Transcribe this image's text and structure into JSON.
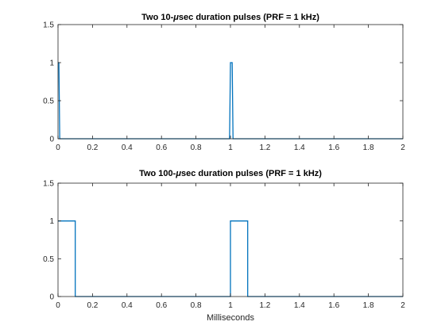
{
  "figure": {
    "background": "#ffffff",
    "axis_color": "#262626",
    "line_color": "#0072bd"
  },
  "chart_data": [
    {
      "type": "line",
      "title_parts": [
        "Two 10-",
        "μ",
        "sec duration pulses (PRF = 1 kHz)"
      ],
      "xlabel": "",
      "ylabel": "",
      "xlim": [
        0,
        2
      ],
      "ylim": [
        0,
        1.5
      ],
      "x_ticks": [
        0,
        0.2,
        0.4,
        0.6,
        0.8,
        1,
        1.2,
        1.4,
        1.6,
        1.8,
        2
      ],
      "x_tick_labels": [
        "0",
        "0.2",
        "0.4",
        "0.6",
        "0.8",
        "1",
        "1.2",
        "1.4",
        "1.6",
        "1.8",
        "2"
      ],
      "y_ticks": [
        0,
        0.5,
        1,
        1.5
      ],
      "y_tick_labels": [
        "0",
        "0.5",
        "1",
        "1.5"
      ],
      "grid": false,
      "series": [
        {
          "x": [
            0,
            0.005,
            0.01,
            0.015,
            0.995,
            1,
            1.005,
            1.01,
            1.015,
            2
          ],
          "y": [
            1,
            1,
            0,
            0,
            0,
            1,
            1,
            1,
            0,
            0
          ]
        }
      ]
    },
    {
      "type": "line",
      "title_parts": [
        "Two 100-",
        "μ",
        "sec duration pulses (PRF = 1 kHz)"
      ],
      "xlabel": "Milliseconds",
      "ylabel": "",
      "xlim": [
        0,
        2
      ],
      "ylim": [
        0,
        1.5
      ],
      "x_ticks": [
        0,
        0.2,
        0.4,
        0.6,
        0.8,
        1,
        1.2,
        1.4,
        1.6,
        1.8,
        2
      ],
      "x_tick_labels": [
        "0",
        "0.2",
        "0.4",
        "0.6",
        "0.8",
        "1",
        "1.2",
        "1.4",
        "1.6",
        "1.8",
        "2"
      ],
      "y_ticks": [
        0,
        0.5,
        1,
        1.5
      ],
      "y_tick_labels": [
        "0",
        "0.5",
        "1",
        "1.5"
      ],
      "grid": false,
      "series": [
        {
          "x": [
            0,
            0.1,
            0.1,
            1,
            1,
            1.1,
            1.1,
            2
          ],
          "y": [
            1,
            1,
            0,
            0,
            1,
            1,
            0,
            0
          ]
        }
      ]
    }
  ]
}
